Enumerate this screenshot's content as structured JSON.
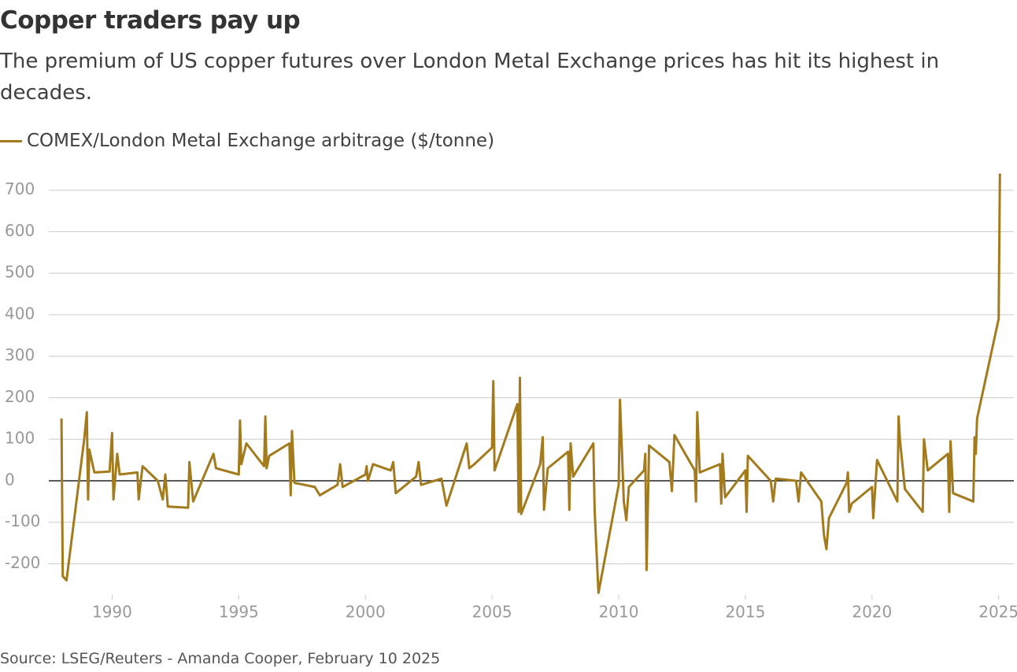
{
  "chart_data": {
    "type": "line",
    "title": "Copper traders pay up",
    "subtitle": "The premium of US copper futures over London Metal Exchange prices has hit its highest in decades.",
    "source": "Source: LSEG/Reuters - Amanda Cooper, February 10 2025",
    "series": [
      {
        "name": "COMEX/London Metal Exchange arbitrage ($/tonne)",
        "color": "#a37a1c",
        "x": [
          1988.0,
          1988.05,
          1988.2,
          1988.9,
          1989.0,
          1989.05,
          1989.1,
          1989.3,
          1989.9,
          1990.0,
          1990.05,
          1990.2,
          1990.3,
          1991.0,
          1991.05,
          1991.2,
          1991.8,
          1992.0,
          1992.1,
          1992.2,
          1993.0,
          1993.05,
          1993.2,
          1994.0,
          1994.1,
          1995.0,
          1995.05,
          1995.1,
          1995.3,
          1996.0,
          1996.05,
          1996.1,
          1996.2,
          1997.0,
          1997.05,
          1997.1,
          1997.2,
          1998.0,
          1998.2,
          1998.9,
          1999.0,
          1999.1,
          2000.0,
          2000.05,
          2000.1,
          2000.3,
          2001.0,
          2001.1,
          2001.2,
          2002.0,
          2002.1,
          2002.2,
          2003.0,
          2003.2,
          2004.0,
          2004.1,
          2004.3,
          2005.0,
          2005.05,
          2005.1,
          2006.0,
          2006.05,
          2006.1,
          2006.15,
          2006.9,
          2007.0,
          2007.05,
          2007.2,
          2008.0,
          2008.05,
          2008.1,
          2008.2,
          2009.0,
          2009.05,
          2009.2,
          2010.0,
          2010.05,
          2010.2,
          2010.3,
          2010.4,
          2011.0,
          2011.05,
          2011.1,
          2011.2,
          2012.0,
          2012.1,
          2012.2,
          2013.0,
          2013.05,
          2013.1,
          2013.2,
          2014.0,
          2014.05,
          2014.1,
          2014.2,
          2015.0,
          2015.05,
          2015.1,
          2016.0,
          2016.1,
          2016.2,
          2017.0,
          2017.1,
          2017.2,
          2018.0,
          2018.1,
          2018.2,
          2018.3,
          2019.0,
          2019.05,
          2019.1,
          2019.2,
          2020.0,
          2020.05,
          2020.2,
          2021.0,
          2021.05,
          2021.1,
          2021.3,
          2022.0,
          2022.05,
          2022.2,
          2023.0,
          2023.05,
          2023.1,
          2023.2,
          2024.0,
          2024.05,
          2024.1,
          2024.15,
          2025.0,
          2025.05
        ],
        "values": [
          150,
          -230,
          -240,
          100,
          165,
          -45,
          75,
          20,
          22,
          115,
          -45,
          65,
          15,
          20,
          -45,
          35,
          0,
          -45,
          15,
          -62,
          -65,
          45,
          -50,
          65,
          30,
          15,
          145,
          40,
          90,
          35,
          155,
          30,
          60,
          90,
          -35,
          120,
          -5,
          -15,
          -35,
          -10,
          40,
          -15,
          15,
          35,
          0,
          40,
          25,
          45,
          -30,
          10,
          45,
          -10,
          5,
          -60,
          90,
          30,
          40,
          80,
          240,
          25,
          185,
          -75,
          248,
          -80,
          40,
          105,
          -70,
          30,
          70,
          -70,
          90,
          10,
          90,
          -70,
          -270,
          -10,
          195,
          -50,
          -95,
          -15,
          25,
          65,
          -215,
          85,
          45,
          -25,
          110,
          25,
          -50,
          165,
          20,
          40,
          -55,
          65,
          -40,
          25,
          -75,
          60,
          0,
          -50,
          5,
          0,
          -50,
          20,
          -50,
          -130,
          -165,
          -90,
          -5,
          20,
          -75,
          -55,
          -15,
          -90,
          50,
          -50,
          155,
          100,
          -20,
          -75,
          100,
          25,
          65,
          -75,
          95,
          -30,
          -50,
          105,
          65,
          150,
          390,
          740
        ]
      }
    ],
    "xlim": [
      1987.5,
      2025.6
    ],
    "xticks": [
      1990,
      1995,
      2000,
      2005,
      2010,
      2015,
      2020,
      2025
    ],
    "ylim": [
      -275,
      745
    ],
    "yticks": [
      -200,
      -100,
      0,
      100,
      200,
      300,
      400,
      500,
      600,
      700
    ],
    "grid": true
  }
}
